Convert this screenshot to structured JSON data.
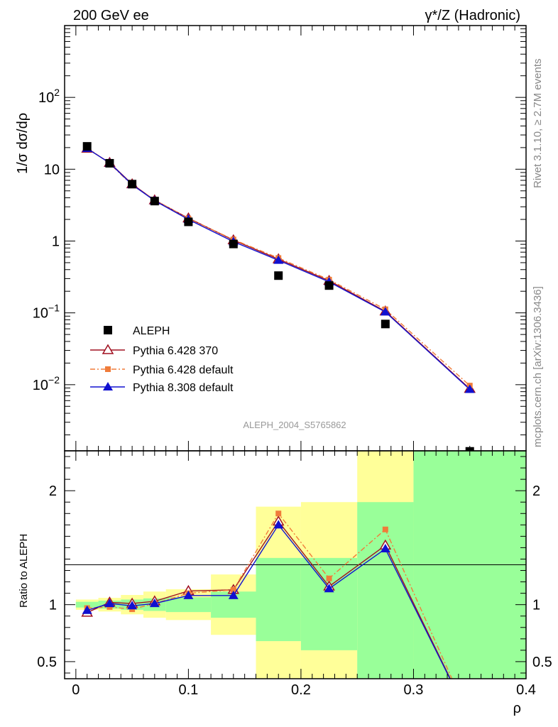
{
  "header": {
    "left_title": "200 GeV ee",
    "right_title": "γ*/Z (Hadronic)",
    "side_label_top": "Rivet 3.1.10, ≥ 2.7M events",
    "side_label_bottom": "mcplots.cern.ch [arXiv:1306.3436]",
    "watermark": "ALEPH_2004_S5765862"
  },
  "colors": {
    "aleph": "#000000",
    "p6_370": "#a01020",
    "p6_default": "#f07c3a",
    "p8_default": "#1010d0",
    "band_inner": "#99ff99",
    "band_outer": "#ffff99"
  },
  "chart_data": {
    "main": {
      "type": "scatter",
      "ylabel": "1/σ  dσ/dρ",
      "yscale": "log",
      "ylim": [
        0.0012,
        1000
      ],
      "xlim": [
        -0.01,
        0.4
      ],
      "yticks": [
        {
          "value": 100,
          "base": "10",
          "exp": "2"
        },
        {
          "value": 10,
          "base": "10",
          "exp": ""
        },
        {
          "value": 1,
          "base": "1",
          "exp": ""
        },
        {
          "value": 0.1,
          "base": "10",
          "exp": "−1"
        },
        {
          "value": 0.01,
          "base": "10",
          "exp": "−2"
        }
      ],
      "legend_position": "bottom-left",
      "x": [
        0.01,
        0.03,
        0.05,
        0.07,
        0.1,
        0.14,
        0.18,
        0.225,
        0.275,
        0.35
      ],
      "series": [
        {
          "name": "ALEPH",
          "key": "aleph",
          "marker": "square",
          "values": [
            20.8,
            12.1,
            6.2,
            3.6,
            1.85,
            0.91,
            0.33,
            0.24,
            0.07,
            0.00118
          ]
        },
        {
          "name": "Pythia 6.428 370",
          "key": "p6_370",
          "marker": "open-triangle",
          "values": [
            19.4,
            12.3,
            6.2,
            3.7,
            2.08,
            1.03,
            0.56,
            0.28,
            0.105,
            0.0088
          ]
        },
        {
          "name": "Pythia 6.428 default",
          "key": "p6_default",
          "marker": "small-square",
          "dashed": true,
          "values": [
            20.0,
            12.0,
            6.0,
            3.75,
            2.05,
            1.05,
            0.58,
            0.29,
            0.112,
            0.0097
          ]
        },
        {
          "name": "Pythia 8.308 default",
          "key": "p8_default",
          "marker": "filled-triangle",
          "values": [
            19.5,
            12.2,
            6.1,
            3.65,
            2.0,
            0.98,
            0.54,
            0.27,
            0.103,
            0.0086
          ]
        }
      ]
    },
    "ratio": {
      "type": "line",
      "ylabel": "Ratio to ALEPH",
      "ylim": [
        0.35,
        2.35
      ],
      "xlim": [
        -0.01,
        0.4
      ],
      "xlabel": "ρ",
      "yticks": [
        0.5,
        1,
        2
      ],
      "ytick_labels": [
        "0.5",
        "1",
        "2"
      ],
      "xticks": [
        0,
        0.1,
        0.2,
        0.3,
        0.4
      ],
      "xtick_labels": [
        "0",
        "0.1",
        "0.2",
        "0.3",
        "0.4"
      ],
      "bands": [
        {
          "x0": 0.0,
          "x1": 0.02,
          "inner": [
            0.975,
            1.025
          ],
          "outer": [
            0.955,
            1.045
          ]
        },
        {
          "x0": 0.02,
          "x1": 0.04,
          "inner": [
            0.965,
            1.035
          ],
          "outer": [
            0.94,
            1.06
          ]
        },
        {
          "x0": 0.04,
          "x1": 0.06,
          "inner": [
            0.955,
            1.045
          ],
          "outer": [
            0.915,
            1.085
          ]
        },
        {
          "x0": 0.06,
          "x1": 0.08,
          "inner": [
            0.945,
            1.055
          ],
          "outer": [
            0.885,
            1.115
          ]
        },
        {
          "x0": 0.08,
          "x1": 0.12,
          "inner": [
            0.935,
            1.065
          ],
          "outer": [
            0.865,
            1.135
          ]
        },
        {
          "x0": 0.12,
          "x1": 0.16,
          "inner": [
            0.885,
            1.115
          ],
          "outer": [
            0.735,
            1.265
          ]
        },
        {
          "x0": 0.16,
          "x1": 0.2,
          "inner": [
            0.68,
            1.41
          ],
          "outer": [
            0.35,
            1.86
          ]
        },
        {
          "x0": 0.2,
          "x1": 0.25,
          "inner": [
            0.6,
            1.41
          ],
          "outer": [
            0.35,
            1.9
          ]
        },
        {
          "x0": 0.25,
          "x1": 0.3,
          "inner": [
            0.35,
            1.9
          ],
          "outer": [
            0.35,
            2.35
          ]
        },
        {
          "x0": 0.3,
          "x1": 0.4,
          "inner": [
            0.35,
            2.35
          ],
          "outer": [
            0.35,
            2.35
          ]
        }
      ],
      "x": [
        0.01,
        0.03,
        0.05,
        0.07,
        0.1,
        0.14,
        0.18,
        0.225,
        0.275,
        0.35
      ],
      "series": [
        {
          "name": "Pythia 6.428 370",
          "key": "p6_370",
          "marker": "open-triangle",
          "values": [
            0.93,
            1.02,
            1.01,
            1.03,
            1.12,
            1.13,
            1.73,
            1.16,
            1.52,
            0.0
          ]
        },
        {
          "name": "Pythia 6.428 default",
          "key": "p6_default",
          "marker": "small-square",
          "dashed": true,
          "values": [
            0.97,
            0.98,
            0.96,
            1.01,
            1.1,
            1.13,
            1.8,
            1.23,
            1.66,
            0.0
          ]
        },
        {
          "name": "Pythia 8.308 default",
          "key": "p8_default",
          "marker": "filled-triangle",
          "values": [
            0.95,
            1.01,
            0.99,
            1.01,
            1.08,
            1.08,
            1.7,
            1.14,
            1.49,
            0.0
          ]
        }
      ]
    }
  }
}
